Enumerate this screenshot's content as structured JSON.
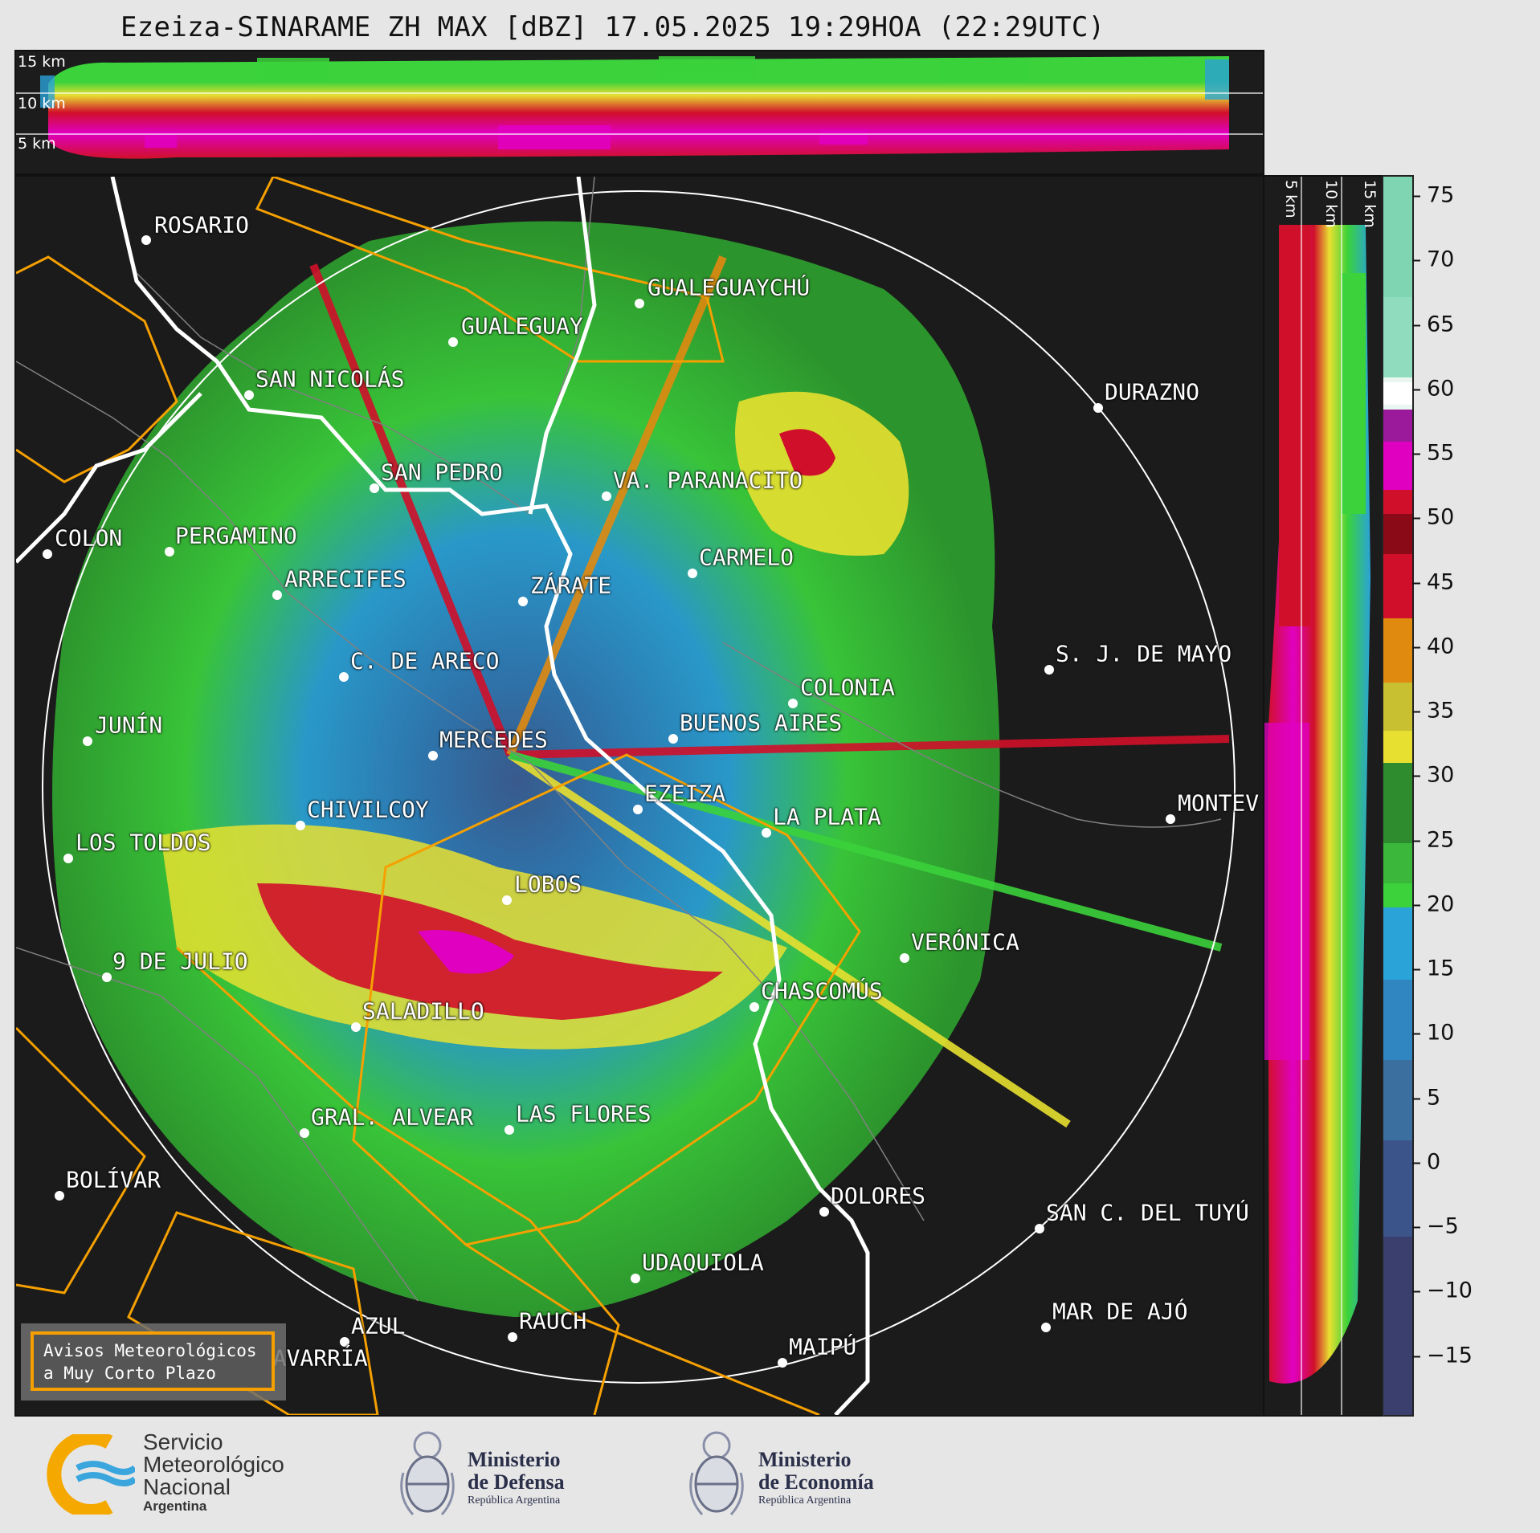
{
  "title": "Ezeiza-SINARAME ZH MAX [dBZ] 17.05.2025 19:29HOA (22:29UTC)",
  "cross_section_top": {
    "height_labels": [
      "15 km",
      "10 km",
      "5 km"
    ]
  },
  "cross_section_right": {
    "height_labels": [
      "5 km",
      "10 km",
      "15 km"
    ]
  },
  "colorbar": {
    "unit": "dBZ",
    "ticks": [
      75,
      70,
      65,
      60,
      55,
      50,
      45,
      40,
      35,
      30,
      25,
      20,
      15,
      10,
      5,
      0,
      "−5",
      "−10",
      "−15"
    ],
    "colors": {
      "neg": "#3a3f6e",
      "lowblue": "#3b6fa0",
      "blue": "#2aa3d8",
      "green": "#3bd23b",
      "darkgreen": "#2e8b2e",
      "yellow": "#e8e030",
      "orange": "#e08a10",
      "red": "#d0102a",
      "darkred": "#8a0a18",
      "magenta": "#e000c0",
      "white": "#ffffff",
      "mint": "#8fdcbf"
    }
  },
  "cities": [
    {
      "name": "ROSARIO"
    },
    {
      "name": "GUALEGUAYCHÚ"
    },
    {
      "name": "GUALEGUAY"
    },
    {
      "name": "SAN NICOLÁS"
    },
    {
      "name": "DURAZNO"
    },
    {
      "name": "SAN PEDRO"
    },
    {
      "name": "VA. PARANACITO"
    },
    {
      "name": "COLON"
    },
    {
      "name": "PERGAMINO"
    },
    {
      "name": "CARMELO"
    },
    {
      "name": "ARRECIFES"
    },
    {
      "name": "ZÁRATE"
    },
    {
      "name": "C. DE ARECO"
    },
    {
      "name": "S. J. DE MAYO"
    },
    {
      "name": "COLONIA"
    },
    {
      "name": "JUNÍN"
    },
    {
      "name": "BUENOS AIRES"
    },
    {
      "name": "MERCEDES"
    },
    {
      "name": "EZEIZA"
    },
    {
      "name": "MONTEV"
    },
    {
      "name": "CHIVILCOY"
    },
    {
      "name": "LA PLATA"
    },
    {
      "name": "LOS TOLDOS"
    },
    {
      "name": "LOBOS"
    },
    {
      "name": "VERÓNICA"
    },
    {
      "name": "9 DE JULIO"
    },
    {
      "name": "CHASCOMÚS"
    },
    {
      "name": "SALADILLO"
    },
    {
      "name": "GRAL. ALVEAR"
    },
    {
      "name": "LAS FLORES"
    },
    {
      "name": "BOLÍVAR"
    },
    {
      "name": "DOLORES"
    },
    {
      "name": "SAN C. DEL TUYÚ"
    },
    {
      "name": "UDAQUIOLA"
    },
    {
      "name": "MAR DE AJÓ"
    },
    {
      "name": "AZUL"
    },
    {
      "name": "RAUCH"
    },
    {
      "name": "OLAVARRÍA"
    },
    {
      "name": "MAIPÚ"
    }
  ],
  "aviso": {
    "line1": "Avisos Meteorológicos",
    "line2": "a Muy Corto Plazo"
  },
  "logos": {
    "smn": {
      "line1": "Servicio",
      "line2": "Meteorológico",
      "line3": "Nacional",
      "line4": "Argentina"
    },
    "defensa": {
      "line1": "Ministerio",
      "line2": "de Defensa",
      "line3": "República Argentina"
    },
    "economia": {
      "line1": "Ministerio",
      "line2": "de Economía",
      "line3": "República Argentina"
    }
  }
}
